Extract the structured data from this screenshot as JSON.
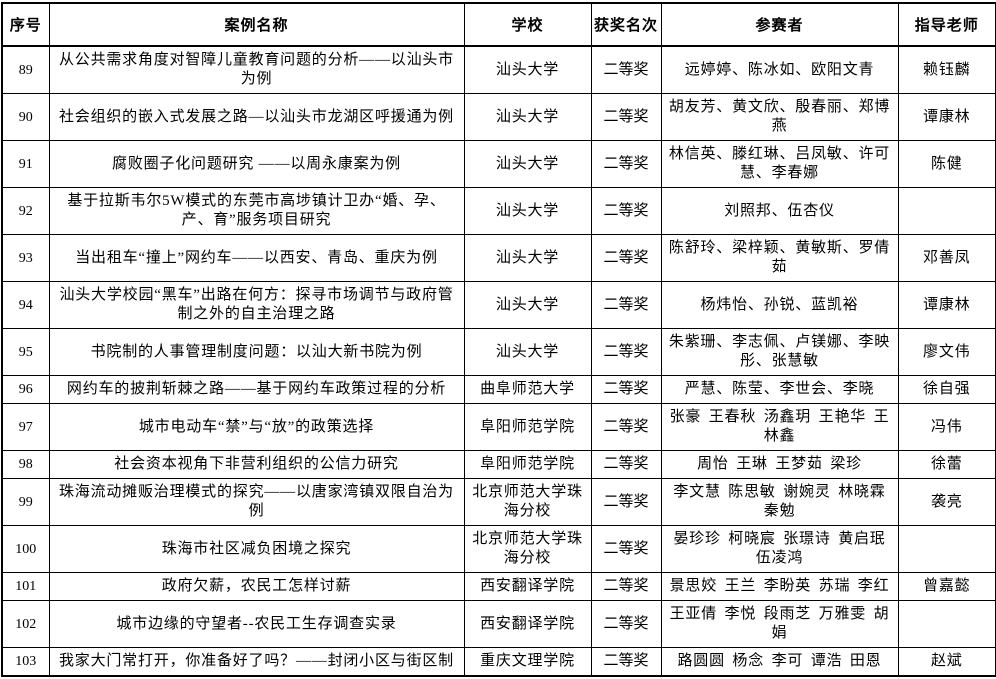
{
  "table": {
    "headers": {
      "index": "序号",
      "case_name": "案例名称",
      "school": "学校",
      "award": "获奖名次",
      "participants": "参赛者",
      "advisor": "指导老师"
    },
    "rows": [
      {
        "index": "89",
        "case_name": "从公共需求角度对智障儿童教育问题的分析——以汕头市为例",
        "school": "汕头大学",
        "award": "二等奖",
        "participants": "远婷婷、陈冰如、欧阳文青",
        "advisor": "赖钰麟"
      },
      {
        "index": "90",
        "case_name": "社会组织的嵌入式发展之路—以汕头市龙湖区呼援通为例",
        "school": "汕头大学",
        "award": "二等奖",
        "participants": "胡友芳、黄文欣、殷春丽、郑博燕",
        "advisor": "谭康林"
      },
      {
        "index": "91",
        "case_name": "腐败圈子化问题研究 ——以周永康案为例",
        "school": "汕头大学",
        "award": "二等奖",
        "participants": "林信英、滕红琳、吕凤敏、许可慧、李春娜",
        "advisor": "陈健"
      },
      {
        "index": "92",
        "case_name": "基于拉斯韦尔5W模式的东莞市高埗镇计卫办“婚、孕、产、育”服务项目研究",
        "school": "汕头大学",
        "award": "二等奖",
        "participants": "刘照邦、伍杏仪",
        "advisor": ""
      },
      {
        "index": "93",
        "case_name": "当出租车“撞上”网约车——以西安、青岛、重庆为例",
        "school": "汕头大学",
        "award": "二等奖",
        "participants": "陈舒玲、梁梓颖、黄敏斯、罗倩茹",
        "advisor": "邓善凤"
      },
      {
        "index": "94",
        "case_name": "汕头大学校园“黑车”出路在何方：探寻市场调节与政府管制之外的自主治理之路",
        "school": "汕头大学",
        "award": "二等奖",
        "participants": "杨炜怡、孙锐、蓝凯裕",
        "advisor": "谭康林"
      },
      {
        "index": "95",
        "case_name": "书院制的人事管理制度问题：以汕大新书院为例",
        "school": "汕头大学",
        "award": "二等奖",
        "participants": "朱紫珊、李志佩、卢镁娜、李映彤、张慧敏",
        "advisor": "廖文伟"
      },
      {
        "index": "96",
        "case_name": "网约车的披荆斩棘之路——基于网约车政策过程的分析",
        "school": "曲阜师范大学",
        "award": "二等奖",
        "participants": "严慧、陈莹、李世会、李晓",
        "advisor": "徐自强"
      },
      {
        "index": "97",
        "case_name": "城市电动车“禁”与“放”的政策选择",
        "school": "阜阳师范学院",
        "award": "二等奖",
        "participants": "张豪 王春秋 汤鑫玥 王艳华 王林鑫",
        "advisor": "冯伟"
      },
      {
        "index": "98",
        "case_name": "社会资本视角下非营利组织的公信力研究",
        "school": "阜阳师范学院",
        "award": "二等奖",
        "participants": "周怡 王琳 王梦茹 梁珍",
        "advisor": "徐蕾"
      },
      {
        "index": "99",
        "case_name": "珠海流动摊贩治理模式的探究——以唐家湾镇双限自治为例",
        "school": "北京师范大学珠海分校",
        "award": "二等奖",
        "participants": "李文慧 陈思敏 谢婉灵 林晓霖 秦勉",
        "advisor": "袭亮"
      },
      {
        "index": "100",
        "case_name": "珠海市社区减负困境之探究",
        "school": "北京师范大学珠海分校",
        "award": "二等奖",
        "participants": "晏珍珍 柯晓宸 张璟诗 黄启珉 伍凌鸿",
        "advisor": ""
      },
      {
        "index": "101",
        "case_name": "政府欠薪，农民工怎样讨薪",
        "school": "西安翻译学院",
        "award": "二等奖",
        "participants": "景思姣 王兰 李盼英 苏瑞 李红",
        "advisor": "曾嘉懿"
      },
      {
        "index": "102",
        "case_name": "城市边缘的守望者--农民工生存调查实录",
        "school": "西安翻译学院",
        "award": "二等奖",
        "participants": "王亚倩 李悦 段雨芝 万雅雯 胡娟",
        "advisor": ""
      },
      {
        "index": "103",
        "case_name": "我家大门常打开，你准备好了吗？——封闭小区与街区制",
        "school": "重庆文理学院",
        "award": "二等奖",
        "participants": "路圆圆 杨念 李可 谭浩 田恩",
        "advisor": "赵斌"
      }
    ]
  }
}
